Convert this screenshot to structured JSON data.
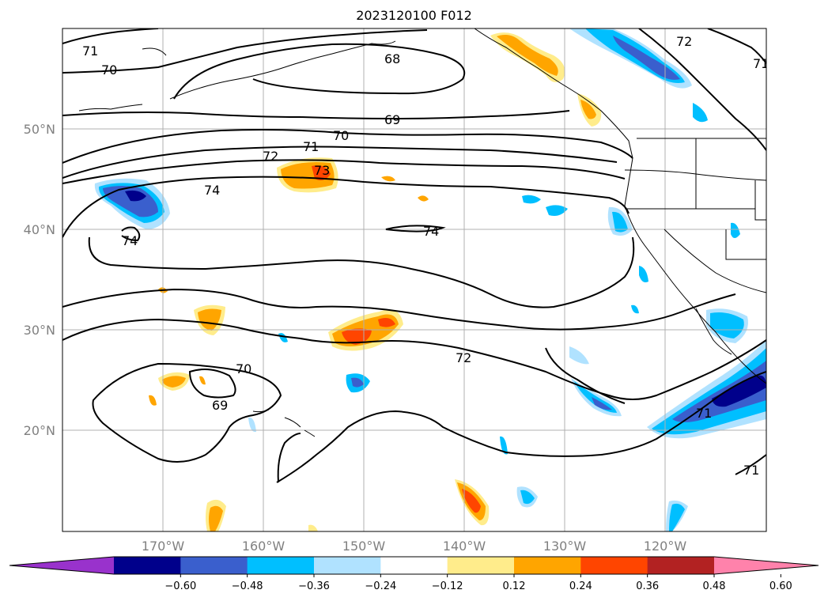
{
  "title": "2023120100 F012",
  "map": {
    "lat_labels": [
      "50°N",
      "40°N",
      "30°N",
      "20°N"
    ],
    "lon_labels": [
      "170°W",
      "160°W",
      "150°W",
      "140°W",
      "130°W",
      "120°W"
    ],
    "gridlines": true,
    "contour_color": "#000000",
    "contour_labels": [
      "71",
      "70",
      "68",
      "72",
      "71",
      "69",
      "70",
      "71",
      "72",
      "73",
      "74",
      "74",
      "74",
      "72",
      "70",
      "69",
      "71",
      "71"
    ]
  },
  "colorbar": {
    "ticks": [
      "−0.60",
      "−0.48",
      "−0.36",
      "−0.24",
      "−0.12",
      "0.12",
      "0.24",
      "0.36",
      "0.48",
      "0.60"
    ],
    "colors": [
      "#9932cc",
      "#00008b",
      "#3a5fcd",
      "#00bfff",
      "#b0e2ff",
      "#ffffff",
      "#ffec8b",
      "#ffa500",
      "#ff4500",
      "#b22222",
      "#ff82ab"
    ],
    "extend": "both"
  }
}
